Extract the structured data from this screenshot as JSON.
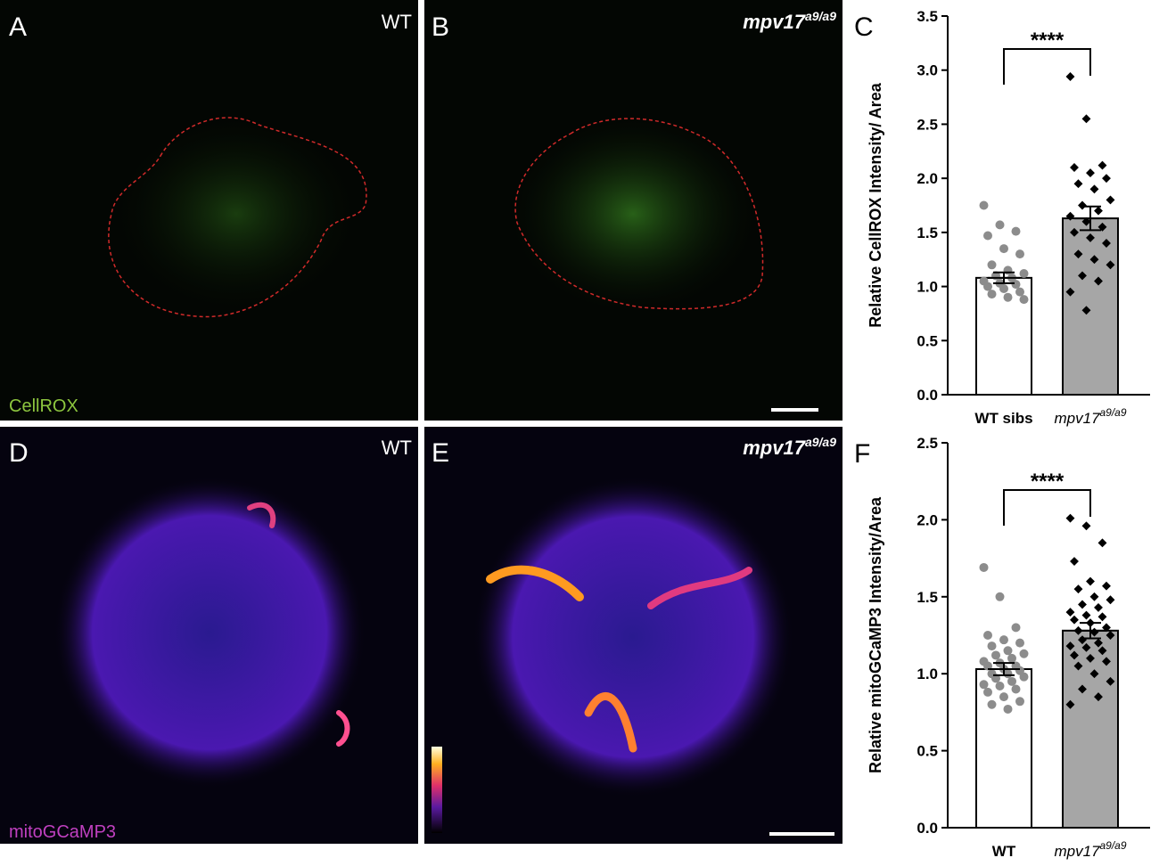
{
  "panels": [
    {
      "letter": "A",
      "genotype": "WT",
      "stain": "CellROX"
    },
    {
      "letter": "B",
      "genotype": "mpv17",
      "genotype_sup": "a9/a9"
    },
    {
      "letter": "D",
      "genotype": "WT",
      "stain": "mitoGCaMP3"
    },
    {
      "letter": "E",
      "genotype": "mpv17",
      "genotype_sup": "a9/a9"
    }
  ],
  "chart_data": [
    {
      "type": "bar",
      "panel_label": "C",
      "y_label": "Relative CellROX Intensity/ Area",
      "categories": [
        "WT sibs",
        "mpv17"
      ],
      "category_superscript": "a9/a9",
      "values": [
        1.08,
        1.63
      ],
      "errors": [
        0.05,
        0.11
      ],
      "colors": [
        "#ffffff",
        "#a6a6a6"
      ],
      "points": [
        [
          1.75,
          1.57,
          1.51,
          1.47,
          1.35,
          1.3,
          1.2,
          1.15,
          1.12,
          1.1,
          1.08,
          1.05,
          1.03,
          1.02,
          1.0,
          0.98,
          0.95,
          0.93,
          0.9,
          0.88
        ],
        [
          2.94,
          2.55,
          2.12,
          2.1,
          2.05,
          2.0,
          1.95,
          1.9,
          1.8,
          1.75,
          1.7,
          1.65,
          1.6,
          1.55,
          1.5,
          1.45,
          1.4,
          1.3,
          1.25,
          1.2,
          1.1,
          1.05,
          0.95,
          0.78
        ]
      ],
      "annotation": "****",
      "ylim": [
        0,
        3.5
      ],
      "yticks": [
        {
          "value": 0,
          "label": "0.0"
        },
        0.5,
        {
          "value": 1,
          "label": "1.0"
        },
        1.5,
        {
          "value": 2,
          "label": "2.0"
        },
        2.5,
        {
          "value": 3,
          "label": "3.0"
        },
        3.5
      ]
    },
    {
      "type": "bar",
      "panel_label": "F",
      "y_label": "Relative mitoGCaMP3 Intensity/Area",
      "categories": [
        "WT",
        "mpv17"
      ],
      "category_superscript": "a9/a9",
      "values": [
        1.03,
        1.28
      ],
      "errors": [
        0.04,
        0.05
      ],
      "colors": [
        "#ffffff",
        "#a6a6a6"
      ],
      "points": [
        [
          1.69,
          1.5,
          1.3,
          1.25,
          1.22,
          1.2,
          1.18,
          1.15,
          1.13,
          1.12,
          1.1,
          1.08,
          1.07,
          1.05,
          1.05,
          1.03,
          1.02,
          1.0,
          1.0,
          0.98,
          0.97,
          0.95,
          0.93,
          0.92,
          0.9,
          0.88,
          0.85,
          0.82,
          0.8,
          0.77
        ],
        [
          2.01,
          1.96,
          1.85,
          1.73,
          1.6,
          1.57,
          1.55,
          1.5,
          1.48,
          1.45,
          1.43,
          1.4,
          1.38,
          1.37,
          1.35,
          1.33,
          1.3,
          1.28,
          1.27,
          1.25,
          1.22,
          1.2,
          1.18,
          1.17,
          1.15,
          1.12,
          1.1,
          1.08,
          1.05,
          1.0,
          0.95,
          0.9,
          0.85,
          0.8
        ]
      ],
      "annotation": "****",
      "ylim": [
        0,
        2.5
      ],
      "yticks": [
        {
          "value": 0,
          "label": "0.0"
        },
        0.5,
        {
          "value": 1,
          "label": "1.0"
        },
        1.5,
        {
          "value": 2,
          "label": "2.0"
        },
        2.5
      ]
    }
  ]
}
